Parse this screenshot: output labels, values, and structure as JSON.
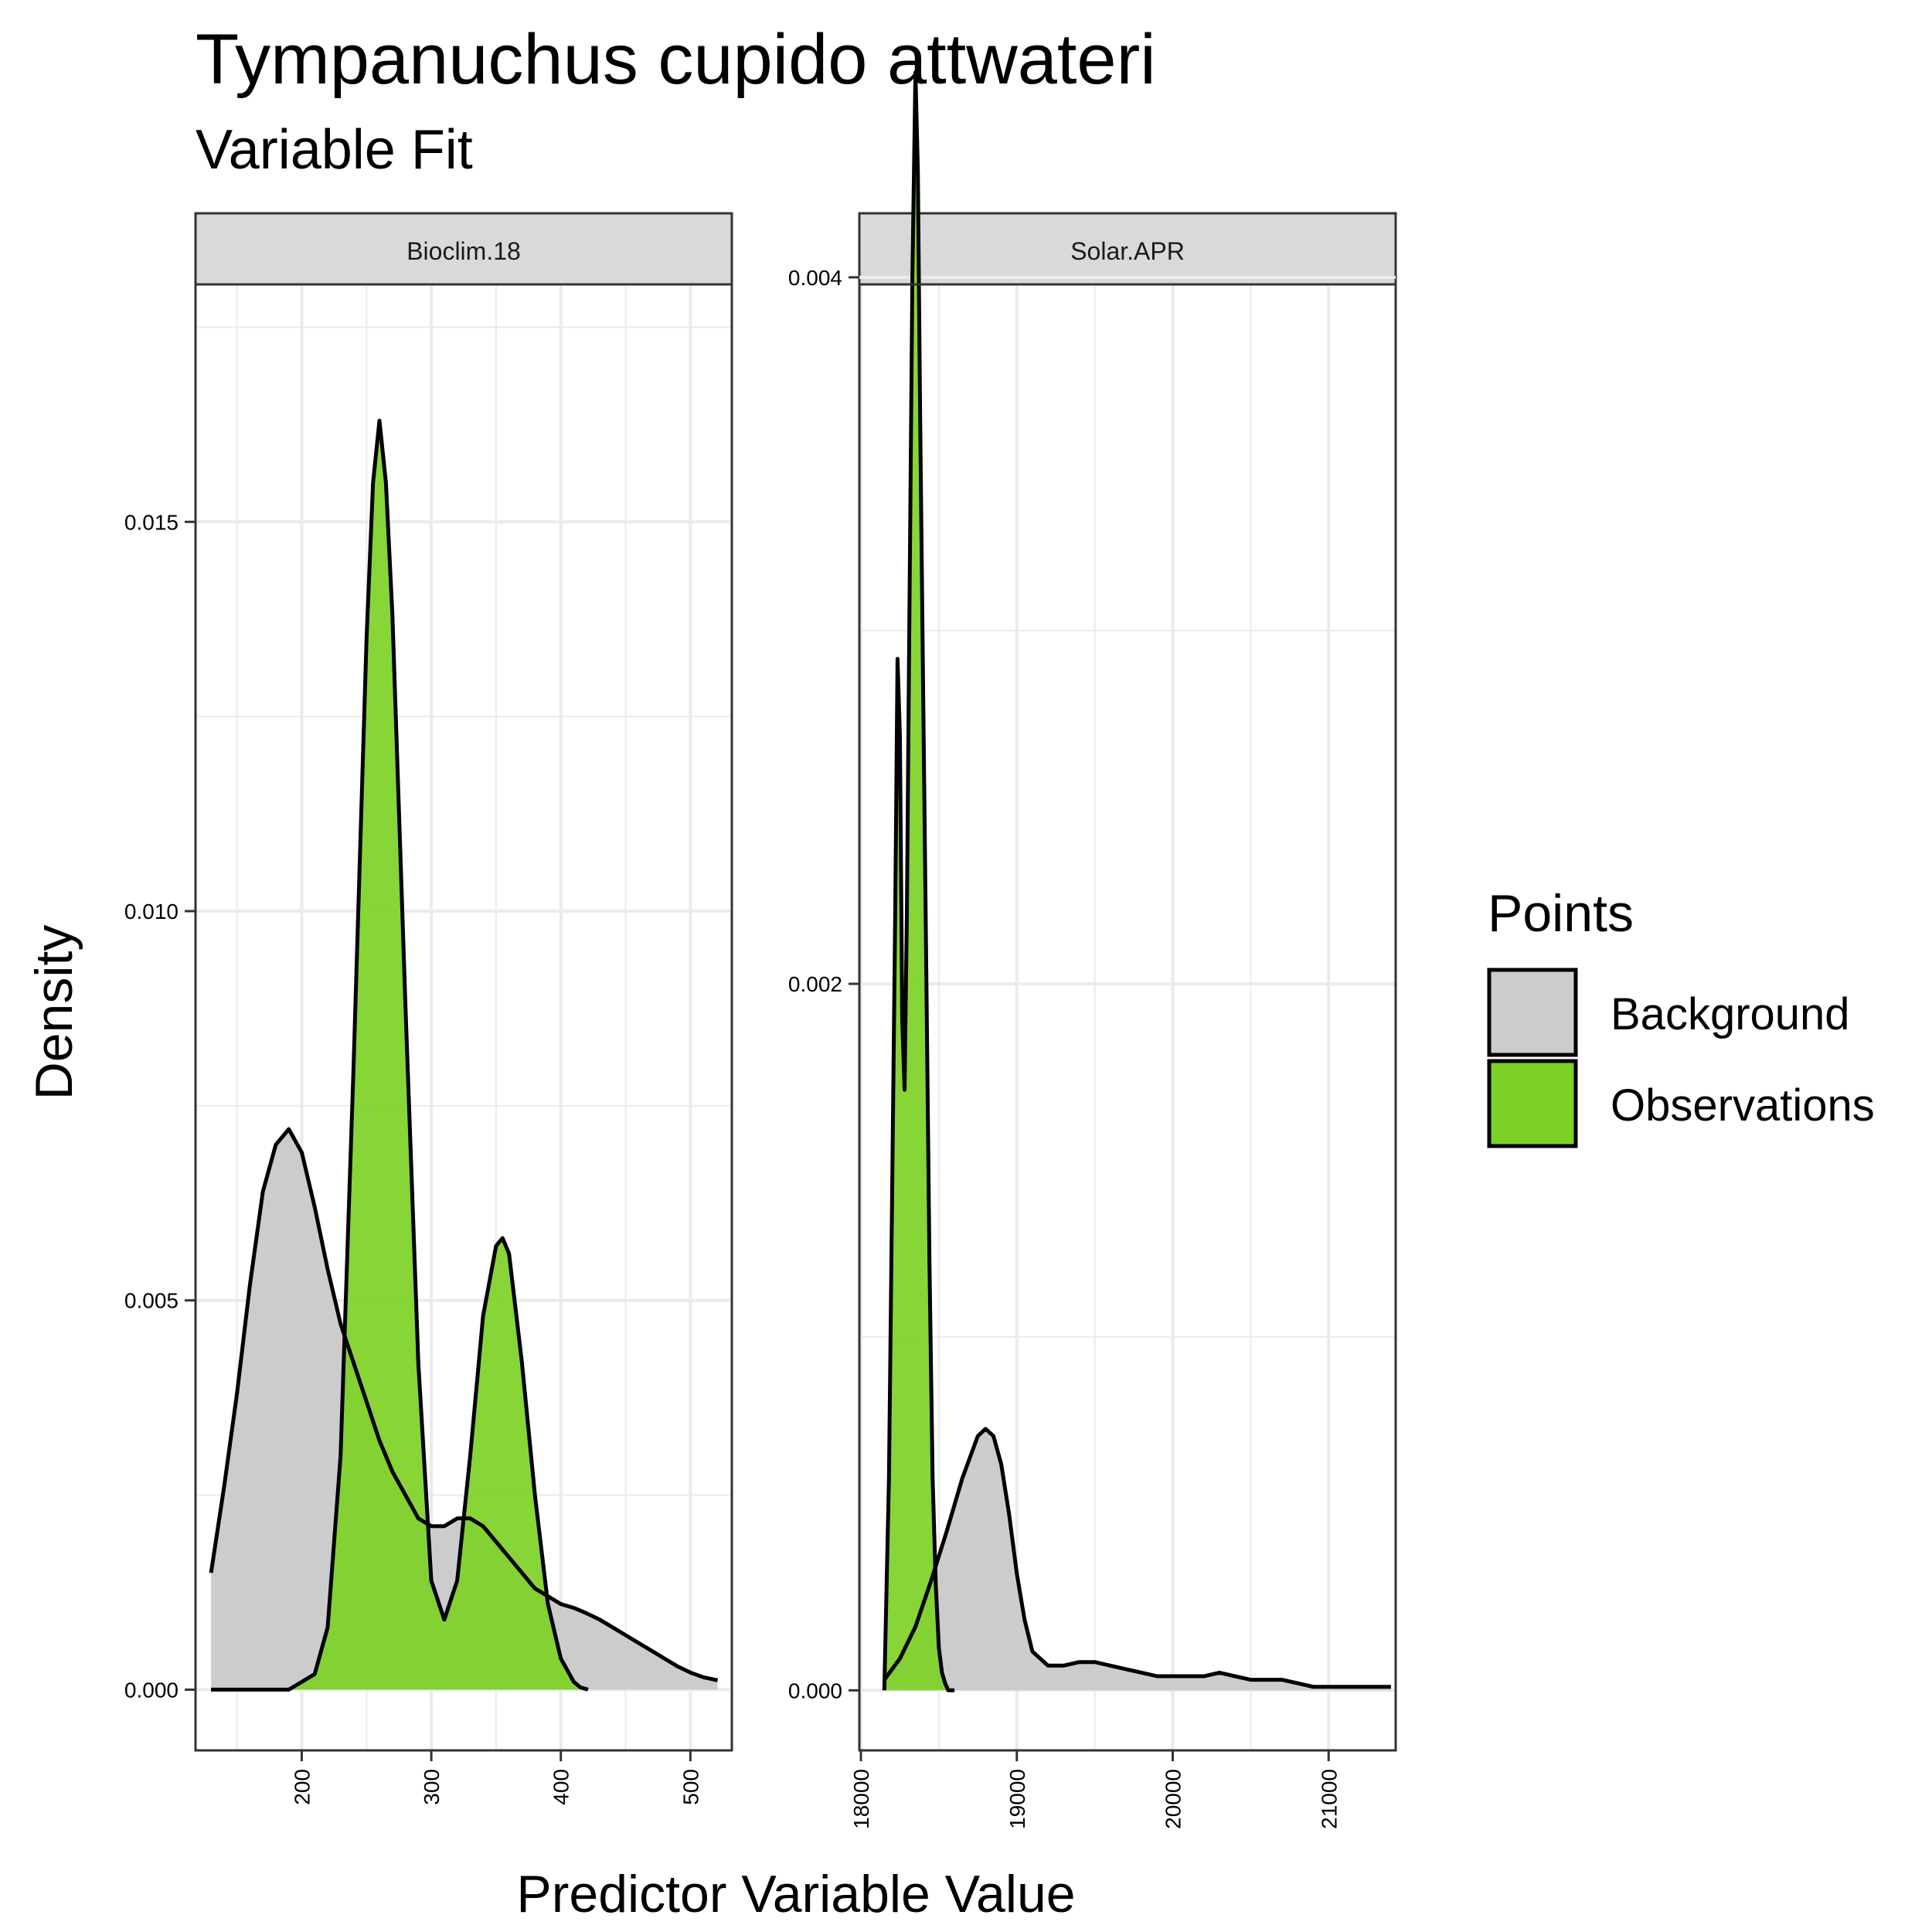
{
  "title": "Tympanuchus cupido attwateri",
  "subtitle": "Variable Fit",
  "xlabel": "Predictor Variable Value",
  "ylabel": "Density",
  "legend": {
    "title": "Points",
    "entries": [
      {
        "label": "Background",
        "color": "#cccccc"
      },
      {
        "label": "Observations",
        "color": "#7dd126"
      }
    ]
  },
  "colors": {
    "background_fill": "#cccccc",
    "observations_fill": "#7dd126",
    "outline": "#000000",
    "grid": "#ebebeb",
    "strip": "#d9d9d9"
  },
  "chart_data": [
    {
      "type": "area",
      "panel": "Bioclim.18",
      "xlim": [
        118,
        532
      ],
      "ylim": [
        -0.00078,
        0.01805
      ],
      "xticks": [
        200,
        300,
        400,
        500
      ],
      "yticks": [
        0.0,
        0.005,
        0.01,
        0.015
      ],
      "ytick_labels": [
        "0.000",
        "0.005",
        "0.010",
        "0.015"
      ],
      "grid": true,
      "series": [
        {
          "name": "Background",
          "x": [
            130,
            140,
            150,
            160,
            170,
            180,
            190,
            200,
            210,
            220,
            230,
            240,
            250,
            260,
            270,
            280,
            290,
            300,
            310,
            320,
            330,
            340,
            350,
            360,
            370,
            380,
            390,
            400,
            410,
            420,
            430,
            440,
            450,
            460,
            470,
            480,
            490,
            500,
            510,
            521
          ],
          "y": [
            0.0015,
            0.0026,
            0.0038,
            0.0052,
            0.0064,
            0.007,
            0.0072,
            0.0069,
            0.0062,
            0.0054,
            0.0047,
            0.0042,
            0.0037,
            0.0032,
            0.0028,
            0.0025,
            0.0022,
            0.0021,
            0.0021,
            0.0022,
            0.0022,
            0.0021,
            0.0019,
            0.0017,
            0.0015,
            0.0013,
            0.0012,
            0.0011,
            0.00105,
            0.00098,
            0.0009,
            0.0008,
            0.0007,
            0.0006,
            0.0005,
            0.0004,
            0.0003,
            0.00022,
            0.00016,
            0.00012
          ]
        },
        {
          "name": "Observations",
          "x": [
            130,
            190,
            210,
            220,
            230,
            240,
            250,
            255,
            260,
            265,
            270,
            280,
            290,
            300,
            310,
            320,
            330,
            340,
            350,
            355,
            360,
            370,
            380,
            390,
            400,
            410,
            415,
            421
          ],
          "y": [
            0.0,
            0.0,
            0.0002,
            0.0008,
            0.003,
            0.008,
            0.0135,
            0.0155,
            0.0163,
            0.0155,
            0.0138,
            0.0088,
            0.0042,
            0.0014,
            0.0009,
            0.0014,
            0.003,
            0.0048,
            0.0057,
            0.0058,
            0.0056,
            0.0042,
            0.0025,
            0.0011,
            0.0004,
            0.0001,
            3e-05,
            0.0
          ]
        }
      ]
    },
    {
      "type": "area",
      "panel": "Solar.APR",
      "xlim": [
        17990,
        21430
      ],
      "ylim": [
        -0.00017,
        0.00398
      ],
      "xticks": [
        18000,
        19000,
        20000,
        21000
      ],
      "yticks": [
        0.0,
        0.002,
        0.004
      ],
      "ytick_labels": [
        "0.000",
        "0.002",
        "0.004"
      ],
      "grid": true,
      "series": [
        {
          "name": "Background",
          "x": [
            18150,
            18250,
            18350,
            18450,
            18550,
            18650,
            18750,
            18800,
            18850,
            18900,
            18950,
            19000,
            19050,
            19100,
            19200,
            19300,
            19400,
            19500,
            19600,
            19700,
            19800,
            19900,
            20000,
            20100,
            20200,
            20300,
            20400,
            20500,
            20600,
            20700,
            20800,
            20900,
            21000,
            21100,
            21200,
            21300,
            21400
          ],
          "y": [
            3e-05,
            9e-05,
            0.00018,
            0.00031,
            0.00045,
            0.0006,
            0.00072,
            0.00074,
            0.00072,
            0.00064,
            0.0005,
            0.00033,
            0.0002,
            0.00011,
            7e-05,
            7e-05,
            8e-05,
            8e-05,
            7e-05,
            6e-05,
            5e-05,
            4e-05,
            4e-05,
            4e-05,
            4e-05,
            5e-05,
            4e-05,
            3e-05,
            3e-05,
            3e-05,
            2e-05,
            1e-05,
            1e-05,
            1e-05,
            1e-05,
            1e-05,
            1e-05
          ]
        },
        {
          "name": "Observations",
          "x": [
            18150,
            18180,
            18200,
            18220,
            18235,
            18250,
            18265,
            18280,
            18295,
            18310,
            18330,
            18350,
            18365,
            18380,
            18400,
            18420,
            18440,
            18460,
            18480,
            18500,
            18520,
            18540,
            18560,
            18600
          ],
          "y": [
            0.0,
            0.0006,
            0.0014,
            0.0022,
            0.00292,
            0.0027,
            0.0019,
            0.0017,
            0.0022,
            0.003,
            0.004,
            0.00458,
            0.0043,
            0.0036,
            0.0028,
            0.002,
            0.0012,
            0.0006,
            0.0003,
            0.00012,
            5e-05,
            2e-05,
            0.0,
            0.0
          ]
        }
      ]
    }
  ]
}
